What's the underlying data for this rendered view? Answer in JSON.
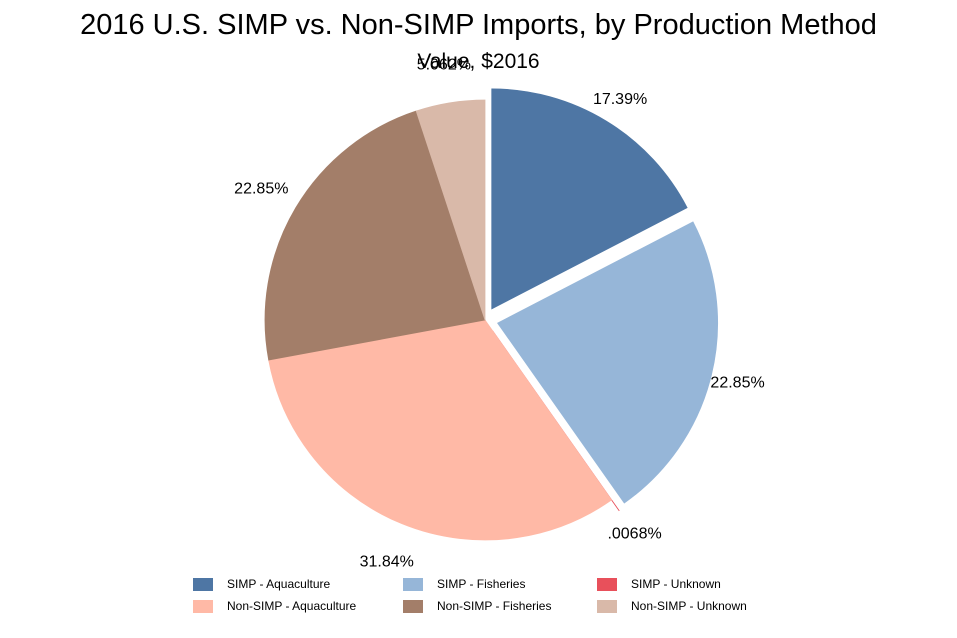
{
  "chart_data": {
    "type": "pie",
    "title": "2016 U.S. SIMP vs. Non-SIMP Imports, by Production Method",
    "subtitle": "Value, $2016",
    "slices": [
      {
        "label": "SIMP - Aquaculture",
        "value": 17.39,
        "data_label": "17.39%",
        "color": "#4e76a4",
        "exploded": true
      },
      {
        "label": "SIMP - Fisheries",
        "value": 22.85,
        "data_label": "22.85%",
        "color": "#96b6d8",
        "exploded": true
      },
      {
        "label": "SIMP - Unknown",
        "value": 0.0068,
        "data_label": ".0068%",
        "color": "#e8505b",
        "exploded": true
      },
      {
        "label": "Non-SIMP - Aquaculture",
        "value": 31.84,
        "data_label": "31.84%",
        "color": "#ffb9a6",
        "exploded": false
      },
      {
        "label": "Non-SIMP - Fisheries",
        "value": 22.85,
        "data_label": "22.85%",
        "color": "#a37e69",
        "exploded": false
      },
      {
        "label": "Non-SIMP - Unknown",
        "value": 5.062,
        "data_label": "5.062%",
        "color": "#d9b9a9",
        "exploded": false
      }
    ],
    "legend_position": "bottom"
  }
}
